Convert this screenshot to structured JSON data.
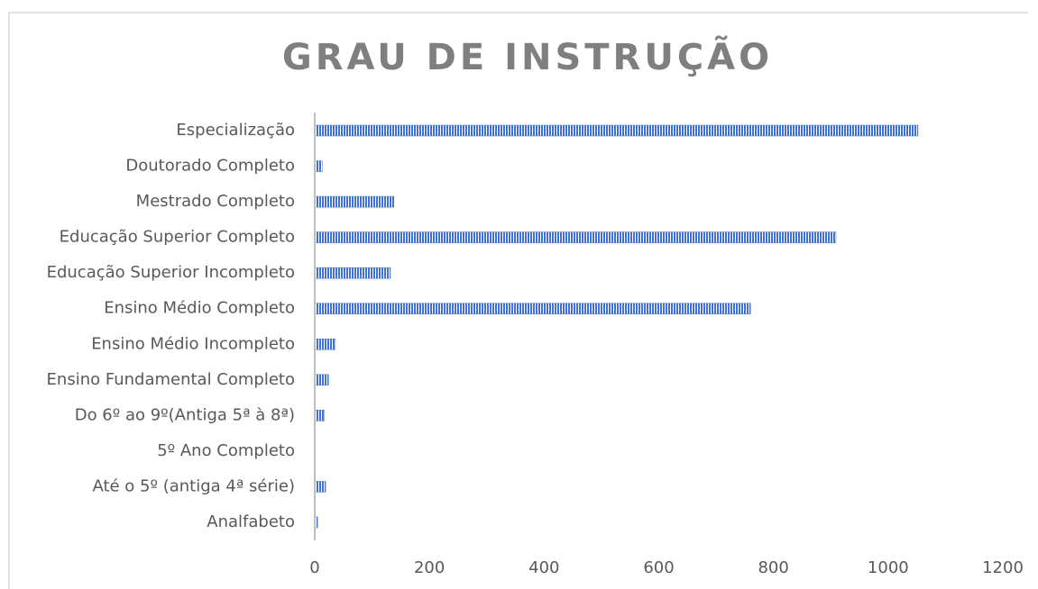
{
  "chart_data": {
    "type": "bar",
    "orientation": "horizontal",
    "title": "GRAU DE INSTRUÇÃO",
    "categories": [
      "Especialização",
      "Doutorado Completo",
      "Mestrado Completo",
      "Educação Superior Completo",
      "Educação Superior Incompleto",
      "Ensino Médio Completo",
      "Ensino Médio Incompleto",
      "Ensino Fundamental Completo",
      "Do 6º ao 9º(Antiga 5ª à 8ª)",
      "5º Ano Completo",
      "Até o 5º (antiga 4ª série)",
      "Analfabeto"
    ],
    "values": [
      1052,
      13,
      138,
      909,
      132,
      760,
      36,
      24,
      17,
      0,
      19,
      5
    ],
    "color": "#4472c4",
    "xlim": [
      0,
      1200
    ],
    "xticks": [
      0,
      200,
      400,
      600,
      800,
      1000,
      1200
    ],
    "grid": false
  }
}
